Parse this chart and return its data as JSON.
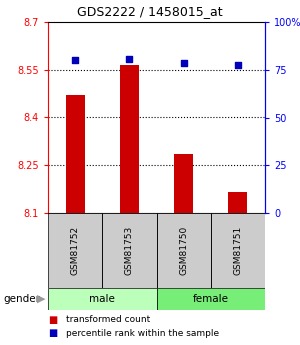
{
  "title": "GDS2222 / 1458015_at",
  "samples": [
    "GSM81752",
    "GSM81753",
    "GSM81750",
    "GSM81751"
  ],
  "gender_groups": [
    "male",
    "male",
    "female",
    "female"
  ],
  "transformed_count": [
    8.47,
    8.565,
    8.285,
    8.165
  ],
  "percentile_rank": [
    80,
    80.5,
    78.5,
    77.5
  ],
  "ylim_left": [
    8.1,
    8.7
  ],
  "ylim_right": [
    0,
    100
  ],
  "yticks_left": [
    8.1,
    8.25,
    8.4,
    8.55,
    8.7
  ],
  "yticks_right": [
    0,
    25,
    50,
    75,
    100
  ],
  "bar_color": "#cc0000",
  "dot_color": "#0000bb",
  "male_color": "#bbffbb",
  "female_color": "#77ee77",
  "sample_box_color": "#cccccc",
  "bar_width": 0.35,
  "dot_size": 22
}
